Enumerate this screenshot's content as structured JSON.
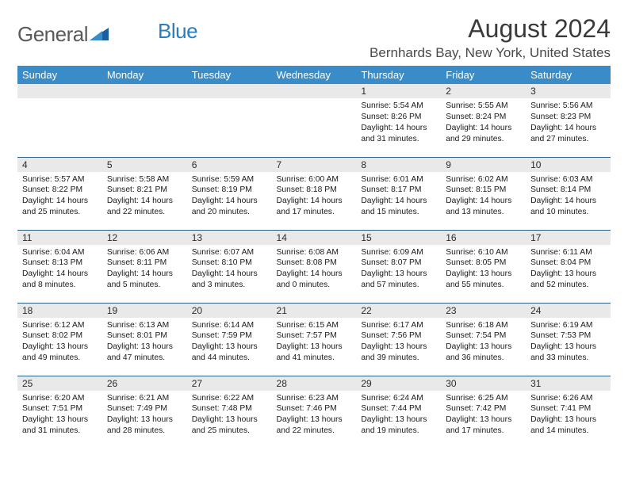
{
  "logo": {
    "general": "General",
    "blue": "Blue"
  },
  "header": {
    "title": "August 2024",
    "location": "Bernhards Bay, New York, United States"
  },
  "colors": {
    "header_bg": "#3a8cc9",
    "row_sep": "#2b5f86",
    "daynum_bg": "#e9e9e9",
    "logo_blue": "#2a7dbf"
  },
  "weekdays": [
    "Sunday",
    "Monday",
    "Tuesday",
    "Wednesday",
    "Thursday",
    "Friday",
    "Saturday"
  ],
  "weeks": [
    [
      null,
      null,
      null,
      null,
      {
        "n": "1",
        "sr": "5:54 AM",
        "ss": "8:26 PM",
        "dl": "14 hours and 31 minutes."
      },
      {
        "n": "2",
        "sr": "5:55 AM",
        "ss": "8:24 PM",
        "dl": "14 hours and 29 minutes."
      },
      {
        "n": "3",
        "sr": "5:56 AM",
        "ss": "8:23 PM",
        "dl": "14 hours and 27 minutes."
      }
    ],
    [
      {
        "n": "4",
        "sr": "5:57 AM",
        "ss": "8:22 PM",
        "dl": "14 hours and 25 minutes."
      },
      {
        "n": "5",
        "sr": "5:58 AM",
        "ss": "8:21 PM",
        "dl": "14 hours and 22 minutes."
      },
      {
        "n": "6",
        "sr": "5:59 AM",
        "ss": "8:19 PM",
        "dl": "14 hours and 20 minutes."
      },
      {
        "n": "7",
        "sr": "6:00 AM",
        "ss": "8:18 PM",
        "dl": "14 hours and 17 minutes."
      },
      {
        "n": "8",
        "sr": "6:01 AM",
        "ss": "8:17 PM",
        "dl": "14 hours and 15 minutes."
      },
      {
        "n": "9",
        "sr": "6:02 AM",
        "ss": "8:15 PM",
        "dl": "14 hours and 13 minutes."
      },
      {
        "n": "10",
        "sr": "6:03 AM",
        "ss": "8:14 PM",
        "dl": "14 hours and 10 minutes."
      }
    ],
    [
      {
        "n": "11",
        "sr": "6:04 AM",
        "ss": "8:13 PM",
        "dl": "14 hours and 8 minutes."
      },
      {
        "n": "12",
        "sr": "6:06 AM",
        "ss": "8:11 PM",
        "dl": "14 hours and 5 minutes."
      },
      {
        "n": "13",
        "sr": "6:07 AM",
        "ss": "8:10 PM",
        "dl": "14 hours and 3 minutes."
      },
      {
        "n": "14",
        "sr": "6:08 AM",
        "ss": "8:08 PM",
        "dl": "14 hours and 0 minutes."
      },
      {
        "n": "15",
        "sr": "6:09 AM",
        "ss": "8:07 PM",
        "dl": "13 hours and 57 minutes."
      },
      {
        "n": "16",
        "sr": "6:10 AM",
        "ss": "8:05 PM",
        "dl": "13 hours and 55 minutes."
      },
      {
        "n": "17",
        "sr": "6:11 AM",
        "ss": "8:04 PM",
        "dl": "13 hours and 52 minutes."
      }
    ],
    [
      {
        "n": "18",
        "sr": "6:12 AM",
        "ss": "8:02 PM",
        "dl": "13 hours and 49 minutes."
      },
      {
        "n": "19",
        "sr": "6:13 AM",
        "ss": "8:01 PM",
        "dl": "13 hours and 47 minutes."
      },
      {
        "n": "20",
        "sr": "6:14 AM",
        "ss": "7:59 PM",
        "dl": "13 hours and 44 minutes."
      },
      {
        "n": "21",
        "sr": "6:15 AM",
        "ss": "7:57 PM",
        "dl": "13 hours and 41 minutes."
      },
      {
        "n": "22",
        "sr": "6:17 AM",
        "ss": "7:56 PM",
        "dl": "13 hours and 39 minutes."
      },
      {
        "n": "23",
        "sr": "6:18 AM",
        "ss": "7:54 PM",
        "dl": "13 hours and 36 minutes."
      },
      {
        "n": "24",
        "sr": "6:19 AM",
        "ss": "7:53 PM",
        "dl": "13 hours and 33 minutes."
      }
    ],
    [
      {
        "n": "25",
        "sr": "6:20 AM",
        "ss": "7:51 PM",
        "dl": "13 hours and 31 minutes."
      },
      {
        "n": "26",
        "sr": "6:21 AM",
        "ss": "7:49 PM",
        "dl": "13 hours and 28 minutes."
      },
      {
        "n": "27",
        "sr": "6:22 AM",
        "ss": "7:48 PM",
        "dl": "13 hours and 25 minutes."
      },
      {
        "n": "28",
        "sr": "6:23 AM",
        "ss": "7:46 PM",
        "dl": "13 hours and 22 minutes."
      },
      {
        "n": "29",
        "sr": "6:24 AM",
        "ss": "7:44 PM",
        "dl": "13 hours and 19 minutes."
      },
      {
        "n": "30",
        "sr": "6:25 AM",
        "ss": "7:42 PM",
        "dl": "13 hours and 17 minutes."
      },
      {
        "n": "31",
        "sr": "6:26 AM",
        "ss": "7:41 PM",
        "dl": "13 hours and 14 minutes."
      }
    ]
  ],
  "labels": {
    "sunrise": "Sunrise: ",
    "sunset": "Sunset: ",
    "daylight": "Daylight: "
  }
}
